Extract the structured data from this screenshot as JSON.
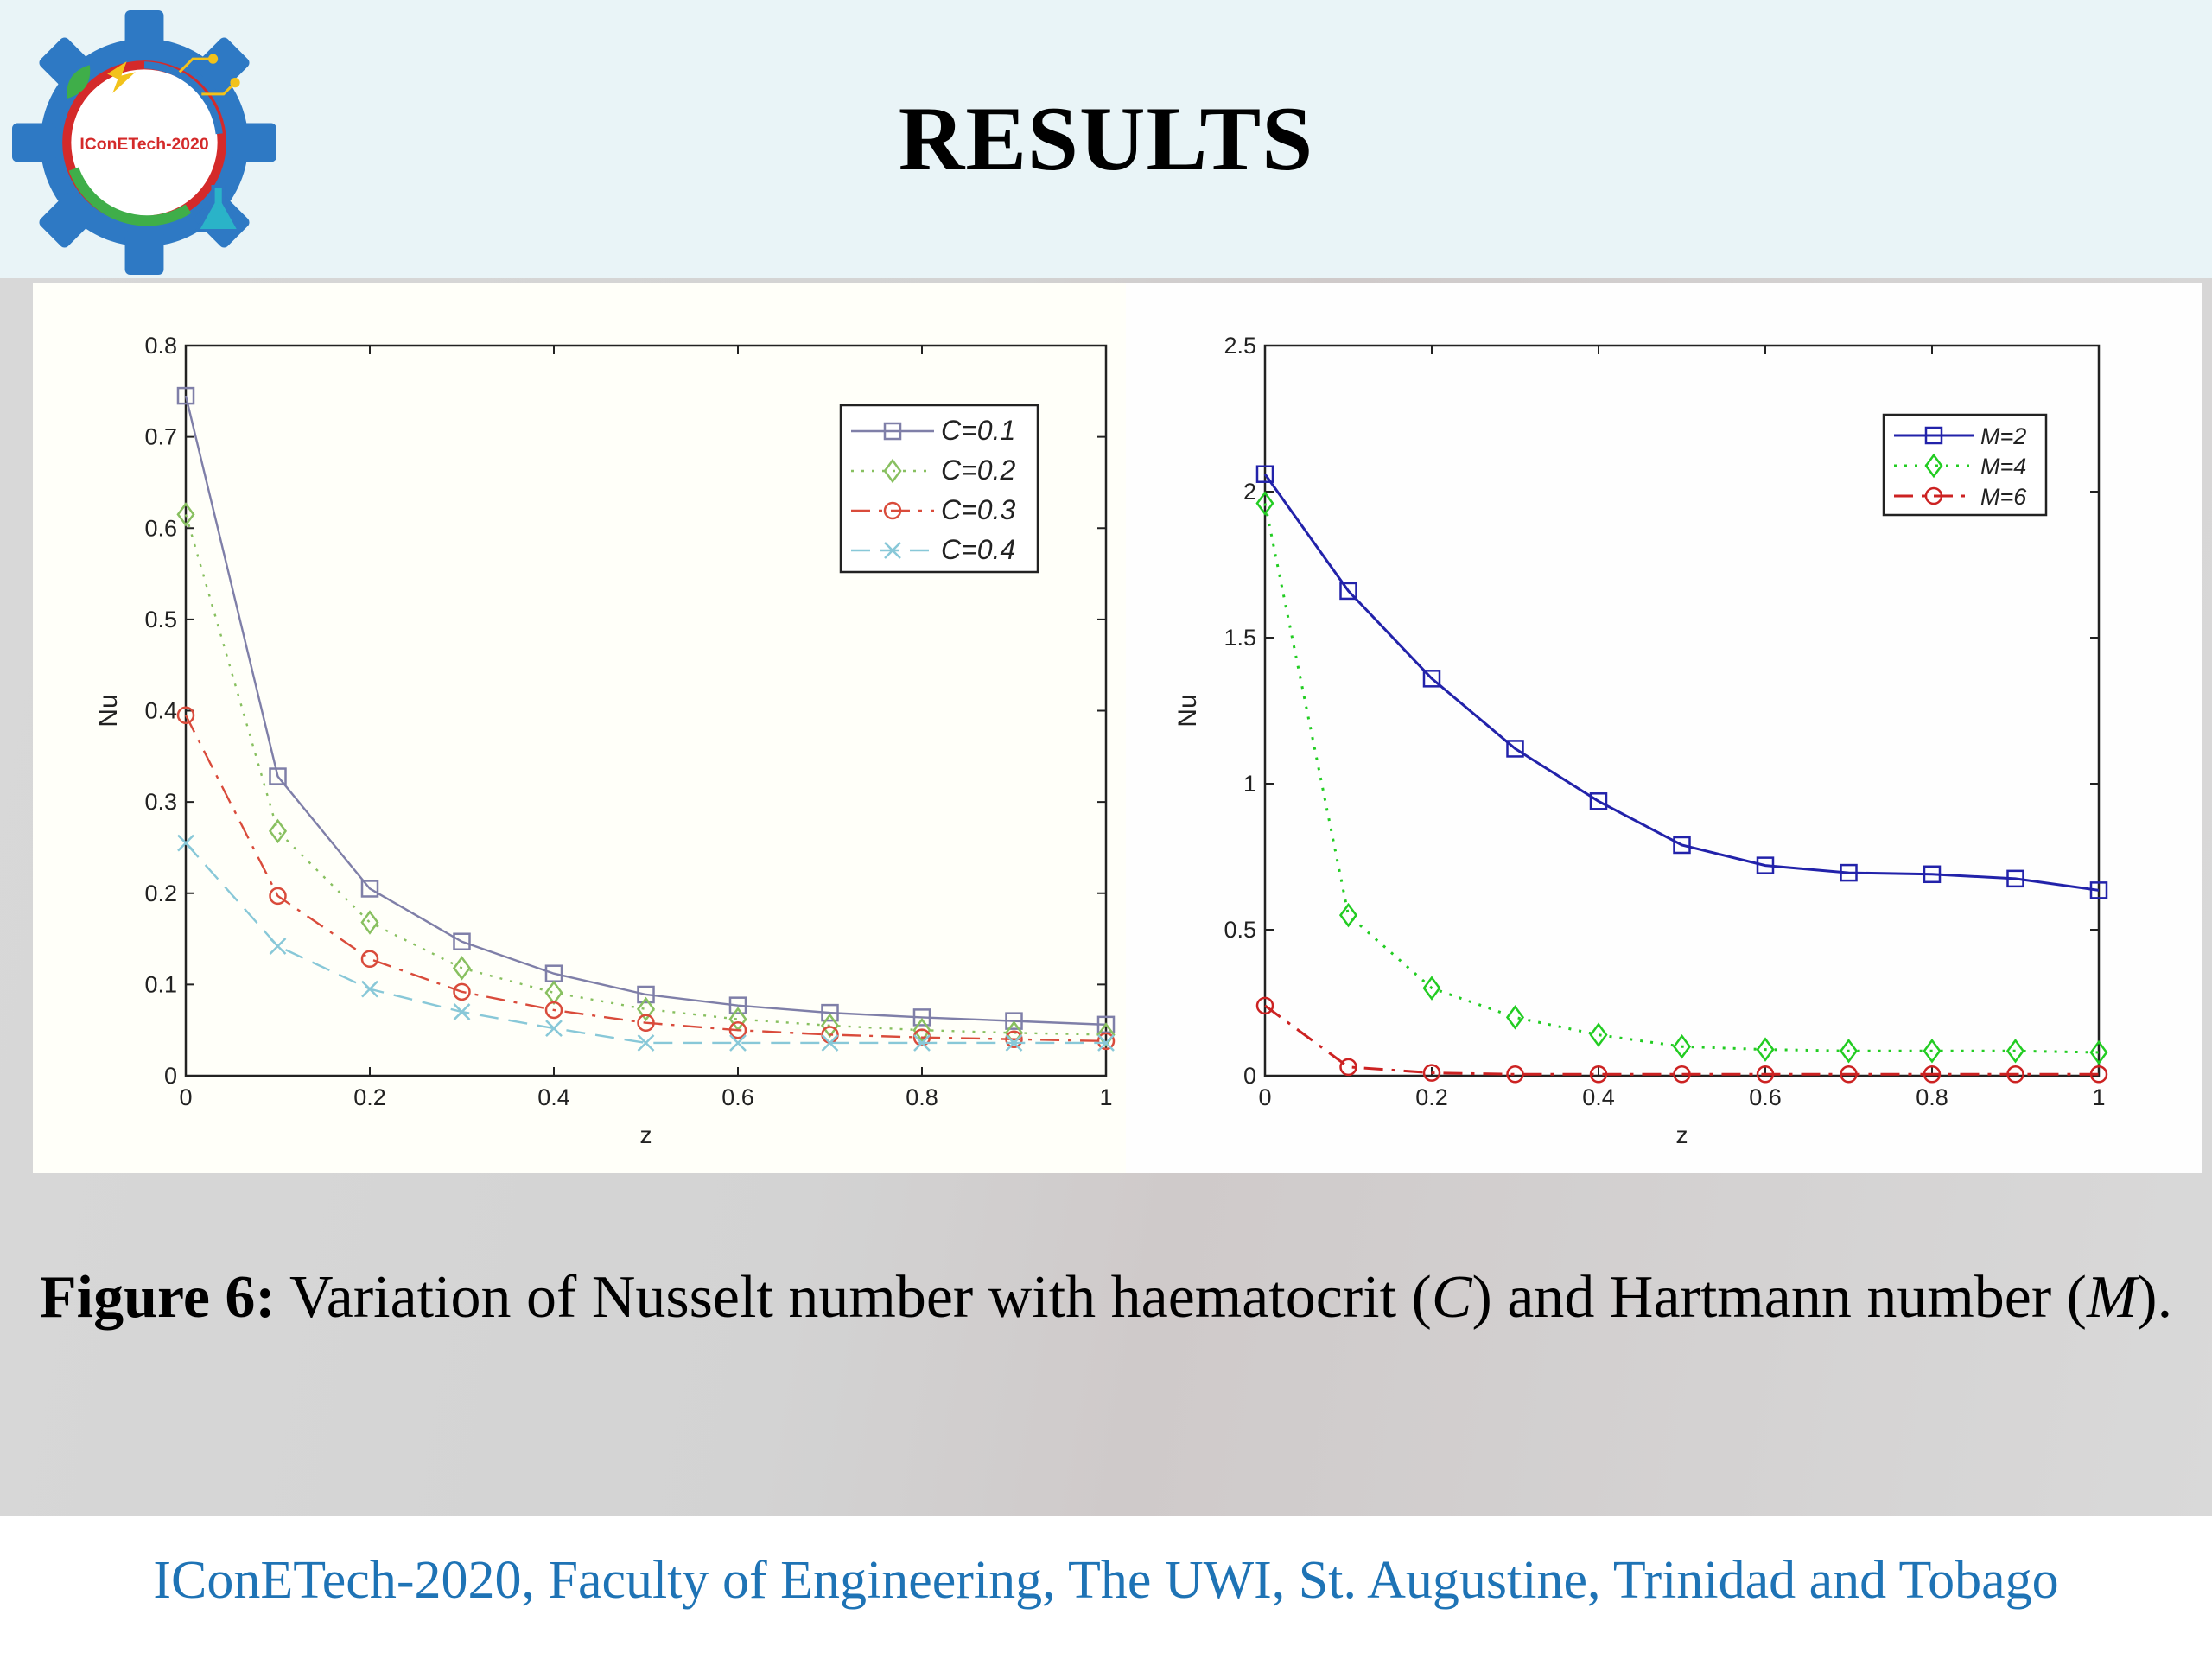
{
  "header": {
    "title": "RESULTS",
    "logo_text": "IConETech-2020"
  },
  "caption": {
    "label": "Figure 6:",
    "text_before_c": " Variation of Nusselt number with haematocrit (",
    "c_symbol": "C",
    "text_between": ") and Hartmann number (",
    "m_symbol": "M",
    "text_end": ")."
  },
  "footer": {
    "text": "IConETech-2020, Faculty of Engineering, The UWI, St. Augustine, Trinidad and Tobago"
  },
  "colors": {
    "header_bg": "#e9f4f7",
    "footer_text": "#1e73b5",
    "c01": "#7f7fa8",
    "c02": "#88c060",
    "c03": "#d94b3b",
    "c04": "#88c8d8",
    "m2": "#2222aa",
    "m4": "#22cc22",
    "m6": "#cc2222"
  },
  "chart_data": [
    {
      "type": "line",
      "xlabel": "z",
      "ylabel": "Nu",
      "xlim": [
        0,
        1
      ],
      "ylim": [
        0,
        0.8
      ],
      "xticks": [
        0,
        0.2,
        0.4,
        0.6,
        0.8,
        1
      ],
      "xtick_labels": [
        "0",
        "0.2",
        "0.4",
        "0.6",
        "0.8",
        "1"
      ],
      "yticks": [
        0,
        0.1,
        0.2,
        0.3,
        0.4,
        0.5,
        0.6,
        0.7,
        0.8
      ],
      "ytick_labels": [
        "0",
        "0.1",
        "0.2",
        "0.3",
        "0.4",
        "0.5",
        "0.6",
        "0.7",
        "0.8"
      ],
      "legend_position": "top-right",
      "x": [
        0,
        0.1,
        0.2,
        0.3,
        0.4,
        0.5,
        0.6,
        0.7,
        0.8,
        0.9,
        1.0
      ],
      "series": [
        {
          "name": "C=0.1",
          "color": "#7f7fa8",
          "marker": "square",
          "dash": "solid",
          "values": [
            0.745,
            0.328,
            0.205,
            0.147,
            0.112,
            0.089,
            0.077,
            0.069,
            0.064,
            0.06,
            0.056
          ]
        },
        {
          "name": "C=0.2",
          "color": "#88c060",
          "marker": "diamond",
          "dash": "dotted",
          "values": [
            0.615,
            0.268,
            0.168,
            0.118,
            0.091,
            0.073,
            0.062,
            0.055,
            0.05,
            0.047,
            0.045
          ]
        },
        {
          "name": "C=0.3",
          "color": "#d94b3b",
          "marker": "circle",
          "dash": "dashdot",
          "values": [
            0.395,
            0.197,
            0.128,
            0.092,
            0.072,
            0.058,
            0.05,
            0.045,
            0.042,
            0.04,
            0.038
          ]
        },
        {
          "name": "C=0.4",
          "color": "#88c8d8",
          "marker": "cross",
          "dash": "dashed",
          "values": [
            0.255,
            0.142,
            0.095,
            0.07,
            0.052,
            0.036,
            0.036,
            0.036,
            0.036,
            0.036,
            0.036
          ]
        }
      ]
    },
    {
      "type": "line",
      "xlabel": "z",
      "ylabel": "Nu",
      "xlim": [
        0,
        1
      ],
      "ylim": [
        0,
        2.5
      ],
      "xticks": [
        0,
        0.2,
        0.4,
        0.6,
        0.8,
        1
      ],
      "xtick_labels": [
        "0",
        "0.2",
        "0.4",
        "0.6",
        "0.8",
        "1"
      ],
      "yticks": [
        0,
        0.5,
        1,
        1.5,
        2,
        2.5
      ],
      "ytick_labels": [
        "0",
        "0.5",
        "1",
        "1.5",
        "2",
        "2.5"
      ],
      "legend_position": "top-right",
      "x": [
        0,
        0.1,
        0.2,
        0.3,
        0.4,
        0.5,
        0.6,
        0.7,
        0.8,
        0.9,
        1.0
      ],
      "series": [
        {
          "name": "M=2",
          "color": "#2222aa",
          "marker": "square",
          "dash": "solid",
          "values": [
            2.06,
            1.66,
            1.36,
            1.12,
            0.94,
            0.79,
            0.72,
            0.695,
            0.69,
            0.675,
            0.635
          ]
        },
        {
          "name": "M=4",
          "color": "#22cc22",
          "marker": "diamond",
          "dash": "dotted",
          "values": [
            1.96,
            0.55,
            0.3,
            0.2,
            0.14,
            0.1,
            0.09,
            0.085,
            0.085,
            0.085,
            0.08
          ]
        },
        {
          "name": "M=6",
          "color": "#cc2222",
          "marker": "circle",
          "dash": "dashdot",
          "values": [
            0.24,
            0.03,
            0.01,
            0.005,
            0.005,
            0.005,
            0.005,
            0.005,
            0.005,
            0.005,
            0.005
          ]
        }
      ]
    }
  ]
}
